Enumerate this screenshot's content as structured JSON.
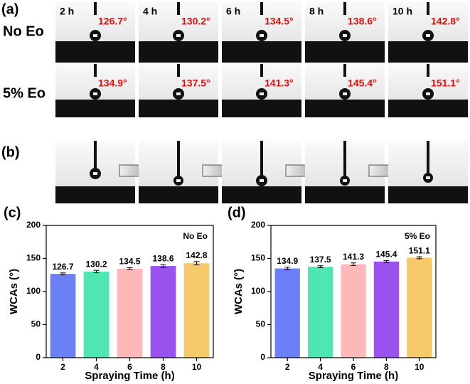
{
  "panel_a": {
    "label": "(a)",
    "rows": [
      {
        "name": "No Eo",
        "times": [
          "2 h",
          "4 h",
          "6 h",
          "8 h",
          "10 h"
        ],
        "angles": [
          "126.7°",
          "130.2°",
          "134.5°",
          "138.6°",
          "142.8°"
        ]
      },
      {
        "name": "5% Eo",
        "angles": [
          "134.9°",
          "137.5°",
          "141.3°",
          "145.4°",
          "151.1°"
        ]
      }
    ]
  },
  "panel_b": {
    "label": "(b)"
  },
  "chart_data": [
    {
      "type": "bar",
      "panel_label": "(c)",
      "annotation": "No Eo",
      "x_label": "Spraying Time (h)",
      "y_label": "WCAs (°)",
      "categories": [
        "2",
        "4",
        "6",
        "8",
        "10"
      ],
      "values": [
        126.7,
        130.2,
        134.5,
        138.6,
        142.8
      ],
      "errors": [
        1.5,
        1.8,
        1.5,
        2,
        2.5
      ],
      "colors": [
        "#6b80f7",
        "#4fe6b2",
        "#ffb8ba",
        "#9a52ef",
        "#f6c96b"
      ],
      "ylim": [
        0,
        200
      ],
      "yticks": [
        0,
        50,
        100,
        150,
        200
      ]
    },
    {
      "type": "bar",
      "panel_label": "(d)",
      "annotation": "5% Eo",
      "x_label": "Spraying Time (h)",
      "y_label": "WCAs (°)",
      "categories": [
        "2",
        "4",
        "6",
        "8",
        "10"
      ],
      "values": [
        134.9,
        137.5,
        141.3,
        145.4,
        151.1
      ],
      "errors": [
        2,
        1.5,
        2,
        1.5,
        1.5
      ],
      "colors": [
        "#6b80f7",
        "#4fe6b2",
        "#ffb8ba",
        "#9a52ef",
        "#f6c96b"
      ],
      "ylim": [
        0,
        200
      ],
      "yticks": [
        0,
        50,
        100,
        150,
        200
      ]
    }
  ]
}
